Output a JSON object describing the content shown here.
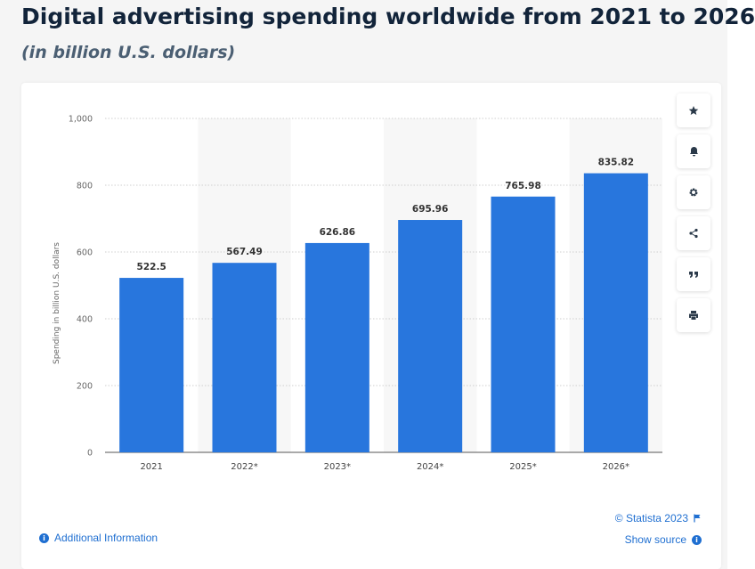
{
  "header": {
    "title": "Digital advertising spending worldwide from 2021 to 2026",
    "subtitle": "(in billion U.S. dollars)"
  },
  "colors": {
    "bar": "#2876dd",
    "band": "#f7f7f7",
    "grid": "#cfcfcf",
    "link": "#1f6fd1"
  },
  "chart_data": {
    "type": "bar",
    "title": "Digital advertising spending worldwide from 2021 to 2026",
    "subtitle": "(in billion U.S. dollars)",
    "categories": [
      "2021",
      "2022*",
      "2023*",
      "2024*",
      "2025*",
      "2026*"
    ],
    "values": [
      522.5,
      567.49,
      626.86,
      695.96,
      765.98,
      835.82
    ],
    "value_labels": [
      "522.5",
      "567.49",
      "626.86",
      "695.96",
      "765.98",
      "835.82"
    ],
    "xlabel": "",
    "ylabel": "Spending in billion U.S. dollars",
    "ylim": [
      0,
      1000
    ],
    "yticks": [
      0,
      200,
      400,
      600,
      800,
      1000
    ],
    "ytick_labels": [
      "0",
      "200",
      "400",
      "600",
      "800",
      "1,000"
    ],
    "grid": true,
    "alternating_bands": true
  },
  "tools": [
    {
      "name": "favorite",
      "icon": "star-icon"
    },
    {
      "name": "notification",
      "icon": "bell-icon"
    },
    {
      "name": "settings",
      "icon": "gear-icon"
    },
    {
      "name": "share",
      "icon": "share-icon"
    },
    {
      "name": "cite",
      "icon": "quote-icon"
    },
    {
      "name": "print",
      "icon": "print-icon"
    }
  ],
  "footer": {
    "additional_info": "Additional Information",
    "copyright": "© Statista 2023",
    "show_source": "Show source"
  }
}
